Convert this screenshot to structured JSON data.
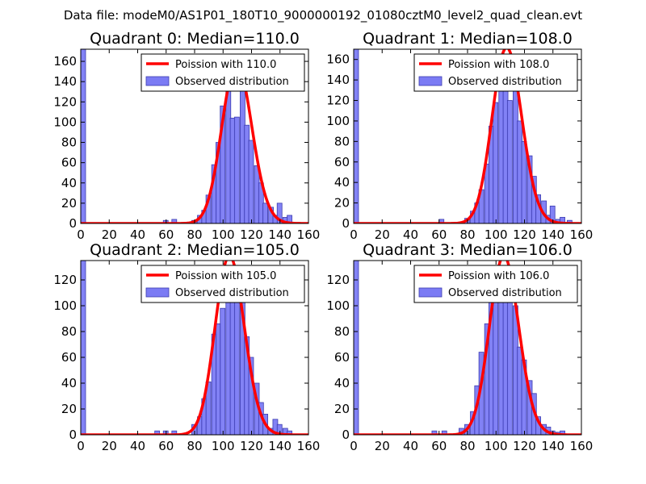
{
  "suptitle": "Data file: modeM0/AS1P01_180T10_9000000192_01080cztM0_level2_quad_clean.evt",
  "colors": {
    "histogram": "#7b7bf4",
    "histogram_edge": "#3c3cb0",
    "poisson": "#ff0000",
    "axes": "#000000"
  },
  "chart_data": [
    {
      "type": "bar",
      "title": "Quadrant 0: Median=110.0",
      "xlim": [
        0,
        160
      ],
      "ylim": [
        0,
        172
      ],
      "xticks": [
        0,
        20,
        40,
        60,
        80,
        100,
        120,
        140,
        160
      ],
      "yticks": [
        0,
        20,
        40,
        60,
        80,
        100,
        120,
        140,
        160
      ],
      "bin_width": 3.4,
      "bins": [
        [
          0,
          172
        ],
        [
          58,
          3
        ],
        [
          64,
          4
        ],
        [
          78,
          3
        ],
        [
          82,
          8
        ],
        [
          85,
          13
        ],
        [
          88,
          28
        ],
        [
          92,
          58
        ],
        [
          95,
          80
        ],
        [
          98,
          116
        ],
        [
          102,
          132
        ],
        [
          105,
          104
        ],
        [
          108,
          105
        ],
        [
          112,
          144
        ],
        [
          115,
          97
        ],
        [
          118,
          82
        ],
        [
          122,
          57
        ],
        [
          125,
          40
        ],
        [
          128,
          20
        ],
        [
          132,
          16
        ],
        [
          135,
          8
        ],
        [
          138,
          20
        ],
        [
          142,
          6
        ],
        [
          145,
          8
        ]
      ],
      "poisson_mean": 110.0,
      "legend": {
        "line_label": "Poission with 110.0",
        "hist_label": "Observed distribution"
      }
    },
    {
      "type": "bar",
      "title": "Quadrant 1: Median=108.0",
      "xlim": [
        0,
        160
      ],
      "ylim": [
        0,
        170
      ],
      "xticks": [
        0,
        20,
        40,
        60,
        80,
        100,
        120,
        140,
        160
      ],
      "yticks": [
        0,
        20,
        40,
        60,
        80,
        100,
        120,
        140,
        160
      ],
      "bin_width": 3.4,
      "bins": [
        [
          0,
          170
        ],
        [
          60,
          4
        ],
        [
          78,
          5
        ],
        [
          82,
          12
        ],
        [
          85,
          20
        ],
        [
          88,
          33
        ],
        [
          92,
          58
        ],
        [
          95,
          95
        ],
        [
          98,
          118
        ],
        [
          102,
          156
        ],
        [
          105,
          130
        ],
        [
          108,
          120
        ],
        [
          112,
          138
        ],
        [
          115,
          100
        ],
        [
          118,
          80
        ],
        [
          122,
          66
        ],
        [
          125,
          46
        ],
        [
          128,
          28
        ],
        [
          132,
          22
        ],
        [
          135,
          8
        ],
        [
          138,
          17
        ],
        [
          142,
          4
        ],
        [
          145,
          6
        ],
        [
          150,
          3
        ]
      ],
      "poisson_mean": 108.0,
      "legend": {
        "line_label": "Poission with 108.0",
        "hist_label": "Observed distribution"
      }
    },
    {
      "type": "bar",
      "title": "Quadrant 2: Median=105.0",
      "xlim": [
        0,
        160
      ],
      "ylim": [
        0,
        135
      ],
      "xticks": [
        0,
        20,
        40,
        60,
        80,
        100,
        120,
        140,
        160
      ],
      "yticks": [
        0,
        20,
        40,
        60,
        80,
        100,
        120
      ],
      "bin_width": 3.4,
      "bins": [
        [
          0,
          135
        ],
        [
          52,
          3
        ],
        [
          58,
          3
        ],
        [
          64,
          3
        ],
        [
          78,
          8
        ],
        [
          82,
          14
        ],
        [
          85,
          28
        ],
        [
          88,
          41
        ],
        [
          92,
          78
        ],
        [
          95,
          86
        ],
        [
          98,
          98
        ],
        [
          102,
          112
        ],
        [
          105,
          110
        ],
        [
          108,
          126
        ],
        [
          112,
          118
        ],
        [
          115,
          76
        ],
        [
          118,
          60
        ],
        [
          122,
          40
        ],
        [
          125,
          25
        ],
        [
          128,
          16
        ],
        [
          132,
          5
        ],
        [
          135,
          12
        ],
        [
          138,
          8
        ],
        [
          142,
          5
        ],
        [
          145,
          3
        ]
      ],
      "poisson_mean": 105.0,
      "legend": {
        "line_label": "Poission with 105.0",
        "hist_label": "Observed distribution"
      }
    },
    {
      "type": "bar",
      "title": "Quadrant 3: Median=106.0",
      "xlim": [
        0,
        160
      ],
      "ylim": [
        0,
        135
      ],
      "xticks": [
        0,
        20,
        40,
        60,
        80,
        100,
        120,
        140,
        160
      ],
      "yticks": [
        0,
        20,
        40,
        60,
        80,
        100,
        120
      ],
      "bin_width": 3.4,
      "bins": [
        [
          0,
          135
        ],
        [
          55,
          3
        ],
        [
          62,
          3
        ],
        [
          74,
          5
        ],
        [
          78,
          8
        ],
        [
          82,
          18
        ],
        [
          85,
          38
        ],
        [
          88,
          64
        ],
        [
          92,
          86
        ],
        [
          95,
          106
        ],
        [
          98,
          126
        ],
        [
          102,
          126
        ],
        [
          105,
          110
        ],
        [
          108,
          118
        ],
        [
          112,
          100
        ],
        [
          115,
          68
        ],
        [
          118,
          58
        ],
        [
          122,
          42
        ],
        [
          125,
          32
        ],
        [
          128,
          14
        ],
        [
          132,
          8
        ],
        [
          135,
          6
        ],
        [
          138,
          3
        ],
        [
          142,
          2
        ],
        [
          145,
          3
        ]
      ],
      "poisson_mean": 106.0,
      "legend": {
        "line_label": "Poission with 106.0",
        "hist_label": "Observed distribution"
      }
    }
  ]
}
